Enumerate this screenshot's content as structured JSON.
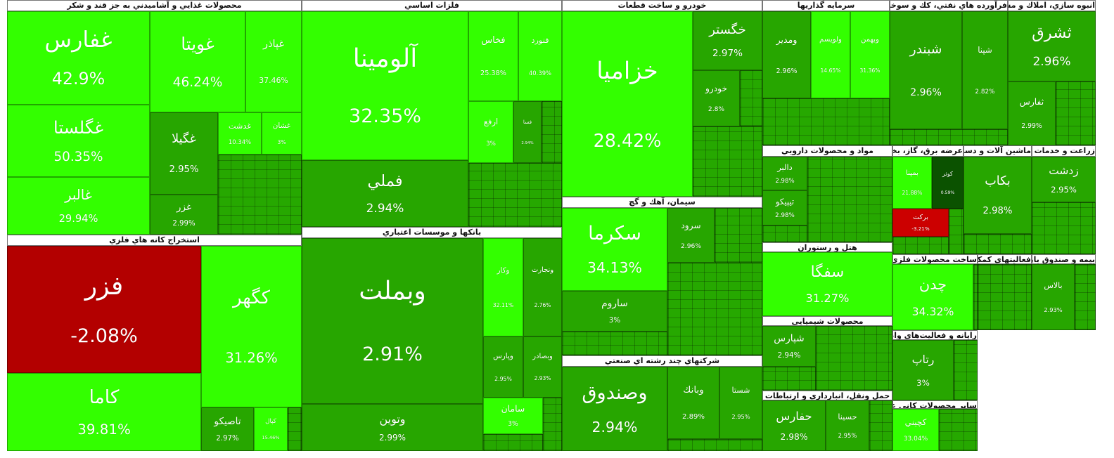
{
  "sectors": [
    {
      "title": "محصولات غذايي و آشاميدني به جز قند و شكر",
      "tiles": [
        {
          "symbol": "غفارس",
          "change": "42.9%",
          "color": "#33ff00"
        },
        {
          "symbol": "غگلستا",
          "change": "50.35%",
          "color": "#33ff00"
        },
        {
          "symbol": "غالبر",
          "change": "29.94%",
          "color": "#33ff00"
        },
        {
          "symbol": "غويتا",
          "change": "46.24%",
          "color": "#33ff00"
        },
        {
          "symbol": "غپاذر",
          "change": "37.46%",
          "color": "#33ff00"
        },
        {
          "symbol": "غگيلا",
          "change": "2.95%",
          "color": "#27a600"
        },
        {
          "symbol": "غزر",
          "change": "2.99%",
          "color": "#27a600"
        },
        {
          "symbol": "غدشت",
          "change": "10.34%",
          "color": "#33ff00"
        },
        {
          "symbol": "غشان",
          "change": "3%",
          "color": "#33ff00"
        }
      ]
    },
    {
      "title": "استخراج كانه هاي فلزي",
      "tiles": [
        {
          "symbol": "فزر",
          "change": "-2.08%",
          "color": "#b30000"
        },
        {
          "symbol": "كگهر",
          "change": "31.26%",
          "color": "#33ff00"
        },
        {
          "symbol": "كاما",
          "change": "39.81%",
          "color": "#33ff00"
        },
        {
          "symbol": "تاصيكو",
          "change": "2.97%",
          "color": "#27a600"
        },
        {
          "symbol": "كپال",
          "change": "15.46%",
          "color": "#33ff00"
        }
      ]
    },
    {
      "title": "فلزات اساسي",
      "tiles": [
        {
          "symbol": "آلومينا",
          "change": "32.35%",
          "color": "#33ff00"
        },
        {
          "symbol": "فملي",
          "change": "2.94%",
          "color": "#27a600"
        },
        {
          "symbol": "فخاس",
          "change": "25.38%",
          "color": "#33ff00"
        },
        {
          "symbol": "فنورد",
          "change": "40.39%",
          "color": "#33ff00"
        },
        {
          "symbol": "ارفع",
          "change": "3%",
          "color": "#33ff00"
        },
        {
          "symbol": "فسا",
          "change": "2.94%",
          "color": "#27a600"
        }
      ]
    },
    {
      "title": "بانكها و موسسات اعتباري",
      "tiles": [
        {
          "symbol": "وبملت",
          "change": "2.91%",
          "color": "#27a600"
        },
        {
          "symbol": "وتوين",
          "change": "2.99%",
          "color": "#27a600"
        },
        {
          "symbol": "وكار",
          "change": "32.11%",
          "color": "#33ff00"
        },
        {
          "symbol": "ونجارت",
          "change": "2.76%",
          "color": "#27a600"
        },
        {
          "symbol": "وپارس",
          "change": "2.95%",
          "color": "#27a600"
        },
        {
          "symbol": "وبصادر",
          "change": "2.93%",
          "color": "#27a600"
        },
        {
          "symbol": "سامان",
          "change": "3%",
          "color": "#33ff00"
        }
      ]
    },
    {
      "title": "خودرو و ساخت قطعات",
      "tiles": [
        {
          "symbol": "خزاميا",
          "change": "28.42%",
          "color": "#33ff00"
        },
        {
          "symbol": "خگستر",
          "change": "2.97%",
          "color": "#27a600"
        },
        {
          "symbol": "خودرو",
          "change": "2.8%",
          "color": "#27a600"
        }
      ]
    },
    {
      "title": "سيمان، آهك و گچ",
      "tiles": [
        {
          "symbol": "سكرما",
          "change": "34.13%",
          "color": "#33ff00"
        },
        {
          "symbol": "ساروم",
          "change": "3%",
          "color": "#27a600"
        },
        {
          "symbol": "سرود",
          "change": "2.96%",
          "color": "#27a600"
        }
      ]
    },
    {
      "title": "شركتهاي چند رشته اي صنعتي",
      "tiles": [
        {
          "symbol": "وصندوق",
          "change": "2.94%",
          "color": "#27a600"
        },
        {
          "symbol": "وبانك",
          "change": "2.89%",
          "color": "#27a600"
        },
        {
          "symbol": "شستا",
          "change": "2.95%",
          "color": "#27a600"
        }
      ]
    },
    {
      "title": "سرمايه گذاريها",
      "tiles": [
        {
          "symbol": "ومدير",
          "change": "2.96%",
          "color": "#27a600"
        },
        {
          "symbol": "ولويسم",
          "change": "14.65%",
          "color": "#33ff00"
        },
        {
          "symbol": "وبهمن",
          "change": "31.36%",
          "color": "#33ff00"
        }
      ]
    },
    {
      "title": "فرآورده هاي نفتي، كك و سوخت هسته اي",
      "tiles": [
        {
          "symbol": "شبندر",
          "change": "2.96%",
          "color": "#27a600"
        },
        {
          "symbol": "شپنا",
          "change": "2.82%",
          "color": "#27a600"
        }
      ]
    },
    {
      "title": "انبوه سازي، املاك و مستغلات",
      "tiles": [
        {
          "symbol": "ثشرق",
          "change": "2.96%",
          "color": "#27a600"
        },
        {
          "symbol": "ثفارس",
          "change": "2.99%",
          "color": "#27a600"
        }
      ]
    },
    {
      "title": "مواد و محصولات دارويي",
      "tiles": [
        {
          "symbol": "دالبر",
          "change": "2.98%",
          "color": "#27a600"
        },
        {
          "symbol": "تيپيكو",
          "change": "2.98%",
          "color": "#27a600"
        }
      ]
    },
    {
      "title": "عرضه برق، گاز، بخاراب گرم",
      "tiles": [
        {
          "symbol": "بمپنا",
          "change": "21.88%",
          "color": "#33ff00"
        },
        {
          "symbol": "كوثر",
          "change": "0.59%",
          "color": "#0b5200"
        },
        {
          "symbol": "بركت",
          "change": "-3.21%",
          "color": "#cc0000"
        }
      ]
    },
    {
      "title": "ماشين آلات و دستگاه‌هاي برقي",
      "tiles": [
        {
          "symbol": "بكاب",
          "change": "2.98%",
          "color": "#27a600"
        }
      ]
    },
    {
      "title": "زراعت و خدمات وابسته",
      "tiles": [
        {
          "symbol": "زدشت",
          "change": "2.95%",
          "color": "#27a600"
        }
      ]
    },
    {
      "title": "هتل و رستوران",
      "tiles": [
        {
          "symbol": "سفگا",
          "change": "31.27%",
          "color": "#33ff00"
        }
      ]
    },
    {
      "title": "محصولات شيميايي",
      "tiles": [
        {
          "symbol": "شپارس",
          "change": "2.94%",
          "color": "#27a600"
        }
      ]
    },
    {
      "title": "حمل ونقل، انبارداري و ارتباطات",
      "tiles": [
        {
          "symbol": "حفارس",
          "change": "2.98%",
          "color": "#27a600"
        },
        {
          "symbol": "حسينا",
          "change": "2.95%",
          "color": "#27a600"
        }
      ]
    },
    {
      "title": "ساخت محصولات فلزي",
      "tiles": [
        {
          "symbol": "چدن",
          "change": "34.32%",
          "color": "#33ff00"
        }
      ]
    },
    {
      "title": "فعاليتهاي كمكي به نهادهاي مالي",
      "tiles": []
    },
    {
      "title": "بيمه و صندوق بازنشستگي",
      "tiles": [
        {
          "symbol": "بالاس",
          "change": "2.93%",
          "color": "#27a600"
        }
      ]
    },
    {
      "title": "رايانه و فعاليت‌هاي وابسته به آن",
      "tiles": [
        {
          "symbol": "رتاپ",
          "change": "3%",
          "color": "#27a600"
        }
      ]
    },
    {
      "title": "ساير محصولات كاني غيرفلزي",
      "tiles": [
        {
          "symbol": "كچيني",
          "change": "33.04%",
          "color": "#33ff00"
        }
      ]
    }
  ]
}
